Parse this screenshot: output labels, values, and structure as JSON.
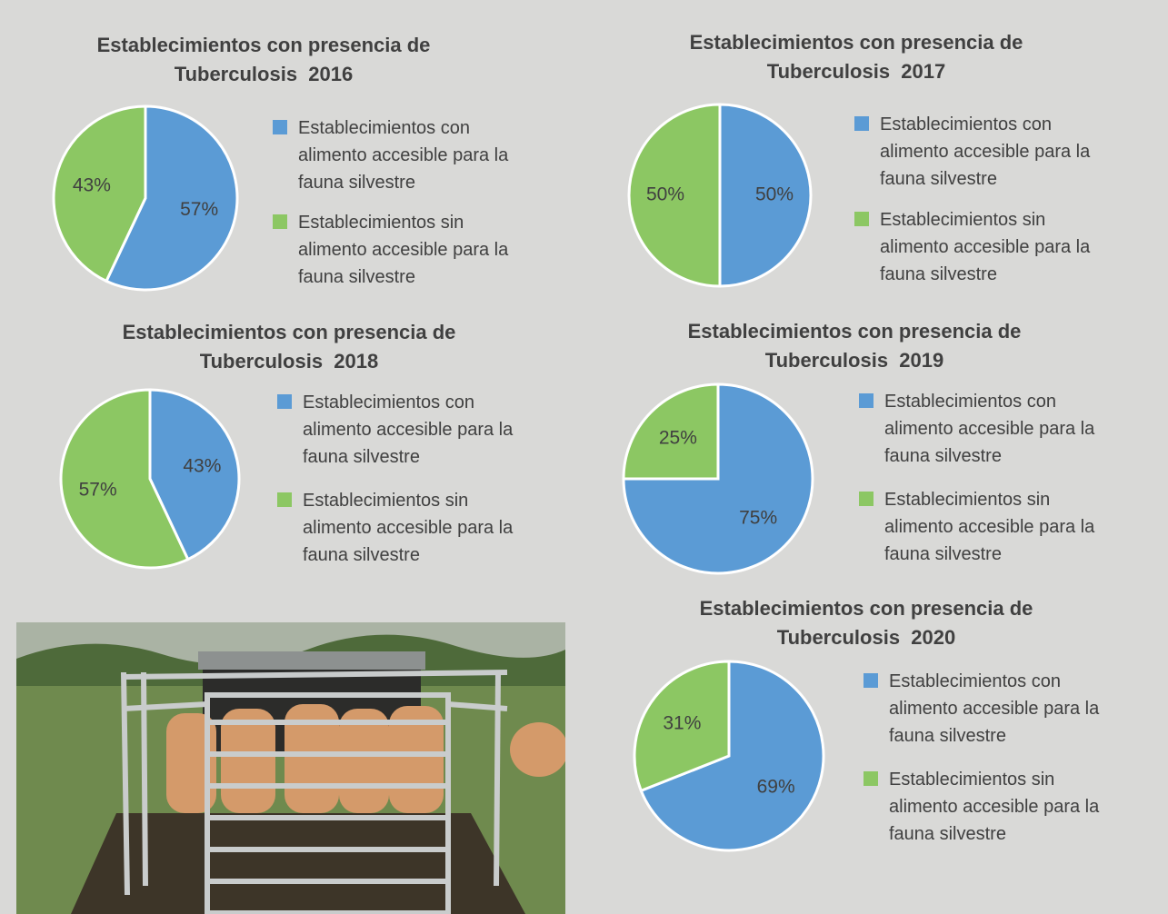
{
  "chart_data": [
    {
      "type": "pie",
      "title": "Establecimientos con presencia de Tuberculosis  2016",
      "categories": [
        "Establecimientos con alimento accesible para la fauna silvestre",
        "Establecimientos sin alimento accesible para la fauna silvestre"
      ],
      "values": [
        57,
        43
      ],
      "value_labels": [
        "57%",
        "43%"
      ],
      "colors": [
        "#5b9bd5",
        "#8cc763"
      ]
    },
    {
      "type": "pie",
      "title": "Establecimientos con presencia de Tuberculosis  2017",
      "categories": [
        "Establecimientos con alimento accesible para la fauna silvestre",
        "Establecimientos sin alimento accesible para la fauna silvestre"
      ],
      "values": [
        50,
        50
      ],
      "value_labels": [
        "50%",
        "50%"
      ],
      "colors": [
        "#5b9bd5",
        "#8cc763"
      ]
    },
    {
      "type": "pie",
      "title": "Establecimientos con presencia de Tuberculosis  2018",
      "categories": [
        "Establecimientos con alimento accesible para la fauna silvestre",
        "Establecimientos sin alimento accesible para la fauna silvestre"
      ],
      "values": [
        43,
        57
      ],
      "value_labels": [
        "43%",
        "57%"
      ],
      "colors": [
        "#5b9bd5",
        "#8cc763"
      ]
    },
    {
      "type": "pie",
      "title": "Establecimientos con presencia de Tuberculosis  2019",
      "categories": [
        "Establecimientos con alimento accesible para la fauna silvestre",
        "Establecimientos sin alimento accesible para la fauna silvestre"
      ],
      "values": [
        75,
        25
      ],
      "value_labels": [
        "75%",
        "25%"
      ],
      "colors": [
        "#5b9bd5",
        "#8cc763"
      ]
    },
    {
      "type": "pie",
      "title": "Establecimientos con presencia de Tuberculosis  2020",
      "categories": [
        "Establecimientos con alimento accesible para la fauna silvestre",
        "Establecimientos sin alimento accesible para la fauna silvestre"
      ],
      "values": [
        69,
        31
      ],
      "value_labels": [
        "69%",
        "31%"
      ],
      "colors": [
        "#5b9bd5",
        "#8cc763"
      ]
    }
  ]
}
